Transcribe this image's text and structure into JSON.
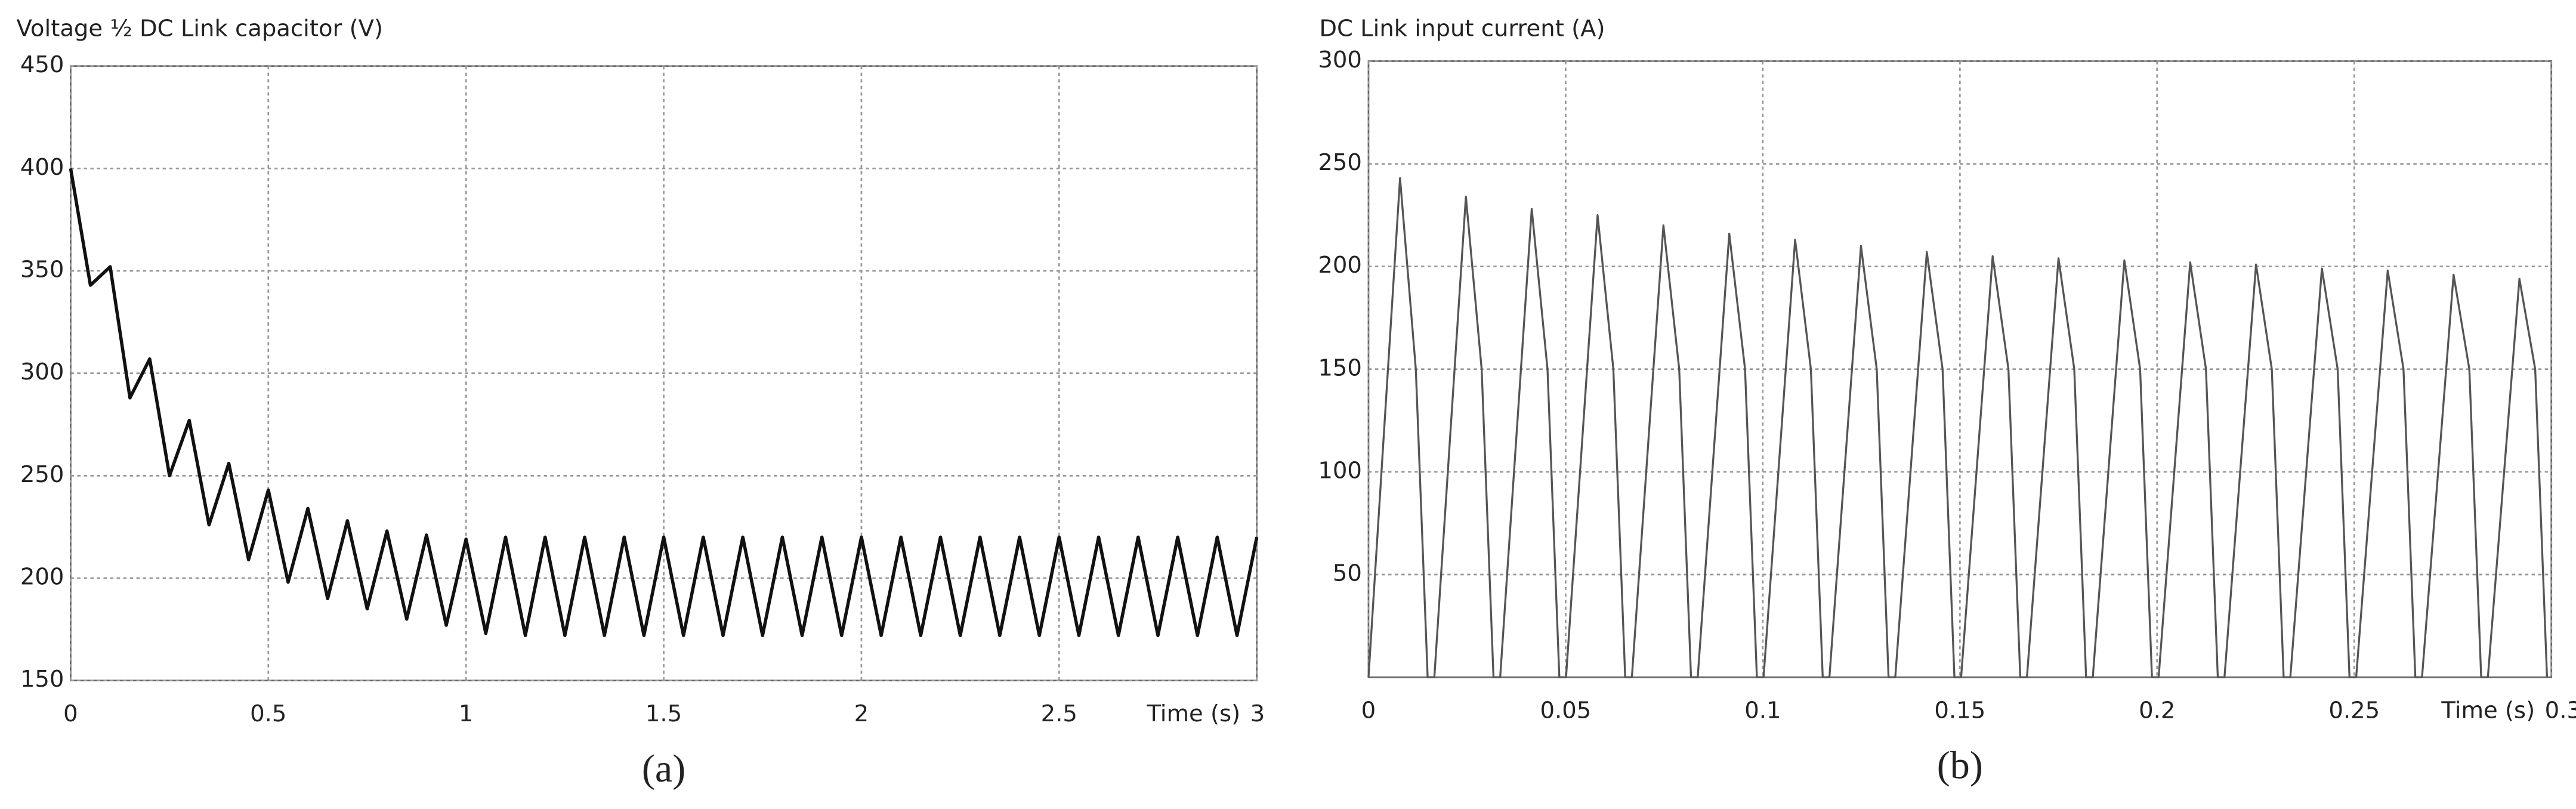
{
  "chart_data": [
    {
      "type": "line",
      "title": "Voltage ½ DC Link capacitor (V)",
      "x_label": "Time (s)",
      "caption": "(a)",
      "xlim": [
        0,
        3
      ],
      "xticks": [
        0,
        0.5,
        1,
        1.5,
        2,
        2.5,
        3
      ],
      "ylim": [
        150,
        450
      ],
      "yticks": [
        150,
        200,
        250,
        300,
        350,
        400,
        450
      ],
      "grid": true,
      "series": [
        {
          "color": "#111111",
          "x": [
            0,
            0.05,
            0.1,
            0.15,
            0.2,
            0.25,
            0.3,
            0.35,
            0.4,
            0.45,
            0.5,
            0.55,
            0.6,
            0.65,
            0.7,
            0.75,
            0.8,
            0.85,
            0.9,
            0.95,
            1,
            1.05,
            1.1,
            1.15,
            1.2,
            1.25,
            1.3,
            1.35,
            1.4,
            1.45,
            1.5,
            1.55,
            1.6,
            1.65,
            1.7,
            1.75,
            1.8,
            1.85,
            1.9,
            1.95,
            2,
            2.05,
            2.1,
            2.15,
            2.2,
            2.25,
            2.3,
            2.35,
            2.4,
            2.45,
            2.5,
            2.55,
            2.6,
            2.65,
            2.7,
            2.75,
            2.8,
            2.85,
            2.9,
            2.95,
            3
          ],
          "values": [
            400,
            343,
            352,
            288,
            307,
            250,
            277,
            226,
            256,
            209,
            243,
            198,
            234,
            190,
            228,
            185,
            223,
            180,
            221,
            177,
            219,
            173,
            220,
            172,
            220,
            172,
            220,
            172,
            220,
            172,
            220,
            172,
            220,
            172,
            220,
            172,
            220,
            172,
            220,
            172,
            220,
            172,
            220,
            172,
            220,
            172,
            220,
            172,
            220,
            172,
            220,
            172,
            220,
            172,
            220,
            172,
            220,
            172,
            220,
            172,
            220
          ]
        }
      ]
    },
    {
      "type": "line",
      "title": "DC Link input current (A)",
      "x_label": "Time (s)",
      "caption": "(b)",
      "xlim": [
        0,
        0.3
      ],
      "xticks": [
        0,
        0.05,
        0.1,
        0.15,
        0.2,
        0.25,
        0.3
      ],
      "ylim": [
        0,
        300
      ],
      "yticks": [
        50,
        100,
        150,
        200,
        250,
        300
      ],
      "grid": true,
      "series": [
        {
          "color": "#555555",
          "x": [
            0,
            0.008,
            0.012,
            0.015,
            0.0167,
            0.0247,
            0.0287,
            0.0317,
            0.0334,
            0.0414,
            0.0454,
            0.0484,
            0.0501,
            0.0581,
            0.0621,
            0.0651,
            0.0668,
            0.0748,
            0.0788,
            0.0818,
            0.0835,
            0.0915,
            0.0955,
            0.0985,
            0.1002,
            0.1082,
            0.1122,
            0.1152,
            0.1169,
            0.1249,
            0.1289,
            0.1319,
            0.1336,
            0.1416,
            0.1456,
            0.1486,
            0.1503,
            0.1583,
            0.1623,
            0.1653,
            0.167,
            0.175,
            0.179,
            0.182,
            0.1837,
            0.1917,
            0.1957,
            0.1987,
            0.2004,
            0.2084,
            0.2124,
            0.2154,
            0.2171,
            0.2251,
            0.2291,
            0.2321,
            0.2338,
            0.2418,
            0.2458,
            0.2488,
            0.2505,
            0.2585,
            0.2625,
            0.2655,
            0.2672,
            0.2752,
            0.2792,
            0.2822,
            0.2839,
            0.2919,
            0.2959,
            0.2989
          ],
          "values": [
            0,
            243,
            150,
            0,
            0,
            234,
            150,
            0,
            0,
            228,
            150,
            0,
            0,
            225,
            150,
            0,
            0,
            220,
            150,
            0,
            0,
            216,
            150,
            0,
            0,
            213,
            150,
            0,
            0,
            210,
            150,
            0,
            0,
            207,
            150,
            0,
            0,
            205,
            150,
            0,
            0,
            204,
            150,
            0,
            0,
            203,
            150,
            0,
            0,
            202,
            150,
            0,
            0,
            201,
            150,
            0,
            0,
            199,
            150,
            0,
            0,
            198,
            150,
            0,
            0,
            196,
            150,
            0,
            0,
            194,
            150,
            0
          ]
        }
      ]
    }
  ]
}
